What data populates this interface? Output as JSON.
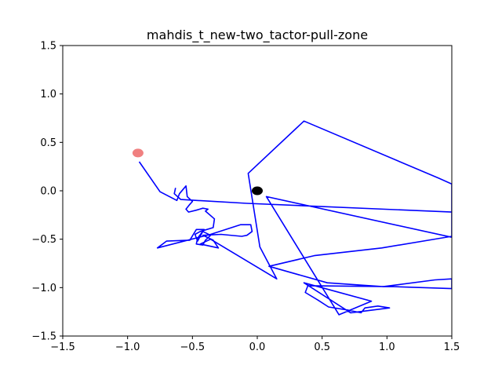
{
  "chart_data": {
    "type": "line",
    "title": "mahdis_t_new-two_tactor-pull-zone",
    "xlabel": "",
    "ylabel": "",
    "xlim": [
      -1.5,
      1.5
    ],
    "ylim": [
      -1.5,
      1.5
    ],
    "grid": false,
    "x_ticks": [
      -1.5,
      -1.0,
      -0.5,
      0.0,
      0.5,
      1.0,
      1.5
    ],
    "x_tick_labels": [
      "−1.5",
      "−1.0",
      "−0.5",
      "0.0",
      "0.5",
      "1.0",
      "1.5"
    ],
    "y_ticks": [
      1.5,
      1.0,
      0.5,
      0.0,
      -0.5,
      -1.0,
      -1.5
    ],
    "y_tick_labels": [
      "1.5",
      "1.0",
      "0.5",
      "0.0",
      "−0.5",
      "−1.0",
      "−1.5"
    ],
    "series": [
      {
        "color": "#0000ff",
        "x": [
          -0.91,
          -0.75,
          -0.62,
          -0.6,
          -0.55,
          -0.54,
          -0.5,
          -0.52,
          -0.55,
          -0.53,
          -0.47,
          -0.42,
          -0.38,
          -0.4,
          -0.33,
          -0.34,
          -0.44,
          -0.48,
          -0.46,
          -0.42,
          -0.36,
          -0.4,
          -0.42,
          -0.47,
          -0.46,
          -0.41,
          -0.47,
          -0.52,
          -0.7,
          -0.77,
          -0.36,
          -0.13,
          -0.05,
          -0.04,
          -0.08,
          -0.12,
          -0.28,
          -0.42,
          -0.34,
          -0.3,
          -0.44,
          -0.36,
          0.15,
          0.02,
          -0.07,
          0.36,
          1.4,
          1.5,
          1.5,
          0.07,
          0.63,
          0.88,
          0.36,
          0.72,
          1.02,
          0.93,
          0.83,
          0.8,
          0.69,
          0.55,
          0.47,
          0.37,
          0.39,
          1.05,
          1.5,
          1.5,
          1.37,
          0.97,
          0.54,
          0.09,
          0.44,
          0.96,
          1.5,
          1.5,
          -0.08,
          -0.59,
          -0.64,
          -0.63
        ],
        "y": [
          0.3,
          -0.01,
          -0.1,
          -0.03,
          0.05,
          -0.06,
          -0.11,
          -0.14,
          -0.19,
          -0.22,
          -0.2,
          -0.18,
          -0.19,
          -0.21,
          -0.29,
          -0.38,
          -0.42,
          -0.45,
          -0.52,
          -0.42,
          -0.46,
          -0.51,
          -0.56,
          -0.55,
          -0.49,
          -0.4,
          -0.4,
          -0.51,
          -0.52,
          -0.59,
          -0.45,
          -0.35,
          -0.35,
          -0.42,
          -0.46,
          -0.47,
          -0.45,
          -0.46,
          -0.51,
          -0.59,
          -0.55,
          -0.5,
          -0.91,
          -0.58,
          0.18,
          0.72,
          0.13,
          0.07,
          -0.48,
          -0.06,
          -1.28,
          -1.14,
          -0.95,
          -1.26,
          -1.21,
          -1.19,
          -1.21,
          -1.26,
          -1.23,
          -1.2,
          -1.13,
          -1.05,
          -0.98,
          -0.99,
          -1.01,
          -0.91,
          -0.92,
          -0.99,
          -0.95,
          -0.78,
          -0.67,
          -0.59,
          -0.47,
          -0.22,
          -0.13,
          -0.09,
          -0.03,
          0.03
        ]
      }
    ],
    "markers": [
      {
        "x": -0.92,
        "y": 0.39,
        "color": "#f08080",
        "label": "start"
      },
      {
        "x": 0.0,
        "y": 0.0,
        "color": "#000000",
        "label": "origin"
      }
    ]
  }
}
